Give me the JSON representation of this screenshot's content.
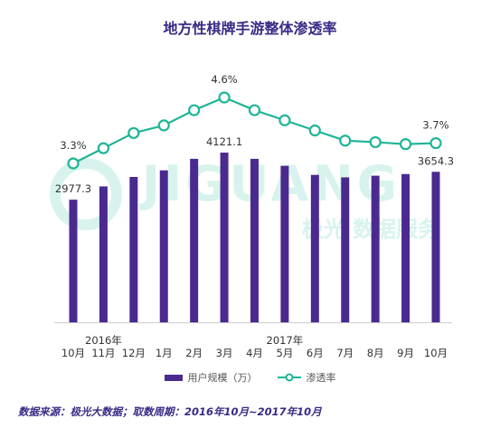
{
  "title": "地方性棋牌手游整体渗透率",
  "source_note": "数据来源：极光大数据；取数周期：2016年10月~2017年10月",
  "watermark": {
    "text_en": "JIGUANG",
    "text_cn": "极光 数据服务"
  },
  "colors": {
    "bar": "#4a2a8f",
    "line": "#1fb596",
    "title": "#3a2a86",
    "watermark": "#d8f3ee"
  },
  "chart_data": {
    "type": "bar",
    "categories": [
      "10月",
      "11月",
      "12月",
      "1月",
      "2月",
      "3月",
      "4月",
      "5月",
      "6月",
      "7月",
      "8月",
      "9月",
      "10月"
    ],
    "year_labels": [
      {
        "text": "2016年",
        "category_index": 1
      },
      {
        "text": "2017年",
        "category_index": 7
      }
    ],
    "series": [
      {
        "name": "用户规模（万）",
        "type": "bar",
        "values": [
          2977.3,
          3300,
          3530,
          3690,
          3970,
          4121.1,
          3970,
          3800,
          3580,
          3520,
          3560,
          3600,
          3654.3
        ],
        "labels": [
          "2977.3",
          "",
          "",
          "",
          "",
          "4121.1",
          "",
          "",
          "",
          "",
          "",
          "",
          "3654.3"
        ]
      },
      {
        "name": "渗透率",
        "type": "line",
        "values": [
          3.3,
          3.6,
          3.9,
          4.05,
          4.35,
          4.6,
          4.35,
          4.15,
          3.95,
          3.75,
          3.72,
          3.68,
          3.7
        ],
        "labels": [
          "3.3%",
          "",
          "",
          "",
          "",
          "4.6%",
          "",
          "",
          "",
          "",
          "",
          "",
          "3.7%"
        ]
      }
    ],
    "y_axes": "none",
    "grid": false,
    "legend_position": "bottom"
  }
}
